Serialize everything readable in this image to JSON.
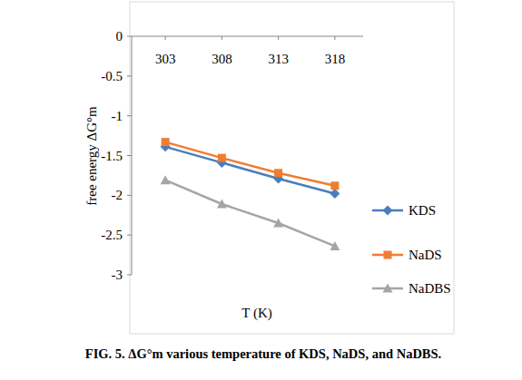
{
  "chart_data": {
    "type": "line",
    "caption": "FIG. 5. ΔG°m various temperature of KDS, NaDS, and NaDBS.",
    "x_label": "T (K)",
    "y_label": "free energy ΔG°m",
    "categories": [
      "303",
      "308",
      "313",
      "318"
    ],
    "series": [
      {
        "name": "KDS",
        "color": "#4a7ebb",
        "marker": "diamond",
        "values": [
          -1.39,
          -1.59,
          -1.79,
          -1.98
        ]
      },
      {
        "name": "NaDS",
        "color": "#f07c32",
        "marker": "square",
        "values": [
          -1.33,
          -1.53,
          -1.72,
          -1.88
        ]
      },
      {
        "name": "NaDBS",
        "color": "#a5a5a5",
        "marker": "triangle",
        "values": [
          -1.81,
          -2.11,
          -2.35,
          -2.64
        ]
      }
    ],
    "ylim": [
      -3,
      0
    ],
    "yticks": [
      0,
      -0.5,
      -1,
      -1.5,
      -2,
      -2.5,
      -3
    ],
    "grid": false,
    "legend": "right"
  }
}
